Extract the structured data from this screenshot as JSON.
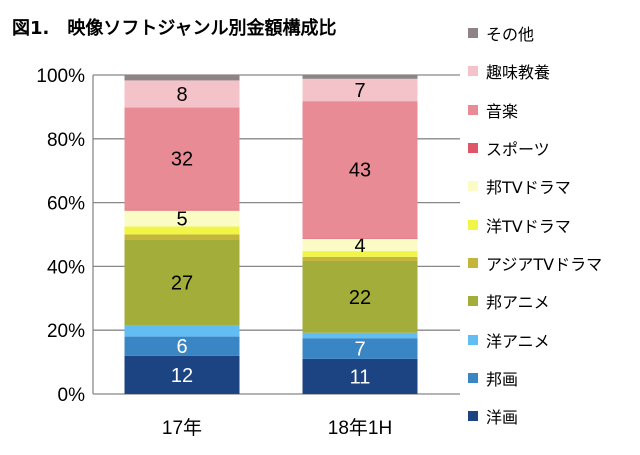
{
  "chart_data": {
    "type": "bar",
    "stacked": true,
    "title": "図1.　映像ソフトジャンル別金額構成比",
    "xlabel": "",
    "ylabel": "",
    "ylim": [
      0,
      100
    ],
    "yticks": [
      "0%",
      "20%",
      "40%",
      "60%",
      "80%",
      "100%"
    ],
    "grid": true,
    "legend_position": "right",
    "categories": [
      "17年",
      "18年1H"
    ],
    "series": [
      {
        "name": "洋画",
        "color": "#1c4382",
        "values": [
          12,
          11
        ],
        "labels": [
          "12",
          "11"
        ],
        "label_color": "#ffffff"
      },
      {
        "name": "邦画",
        "color": "#3a86c5",
        "values": [
          6,
          6.5
        ],
        "labels": [
          "6",
          "7"
        ],
        "label_color": "#ffffff"
      },
      {
        "name": "洋アニメ",
        "color": "#62bdf3",
        "values": [
          3.5,
          1.7
        ],
        "labels": [
          "",
          ""
        ]
      },
      {
        "name": "邦アニメ",
        "color": "#a3ad3a",
        "values": [
          27,
          22.5
        ],
        "labels": [
          "27",
          "22"
        ],
        "label_color": "#000000"
      },
      {
        "name": "アジアTVドラマ",
        "color": "#c4b53d",
        "values": [
          1.5,
          1.3
        ],
        "labels": [
          "",
          ""
        ]
      },
      {
        "name": "洋TVドラマ",
        "color": "#f1f547",
        "values": [
          2.5,
          1.8
        ],
        "labels": [
          "",
          ""
        ]
      },
      {
        "name": "邦TVドラマ",
        "color": "#fbfbc6",
        "values": [
          5,
          3.8
        ],
        "labels": [
          "5",
          "4"
        ],
        "label_color": "#000000"
      },
      {
        "name": "スポーツ",
        "color": "#e05566",
        "values": [
          0.3,
          0.2
        ],
        "labels": [
          "",
          ""
        ]
      },
      {
        "name": "音楽",
        "color": "#e88b95",
        "values": [
          32,
          43
        ],
        "labels": [
          "32",
          "43"
        ],
        "label_color": "#000000"
      },
      {
        "name": "趣味教養",
        "color": "#f4c3c9",
        "values": [
          8.5,
          7
        ],
        "labels": [
          "8",
          "7"
        ],
        "label_color": "#000000"
      },
      {
        "name": "その他",
        "color": "#8e8485",
        "values": [
          1.7,
          1.2
        ],
        "labels": [
          "",
          ""
        ]
      }
    ]
  }
}
